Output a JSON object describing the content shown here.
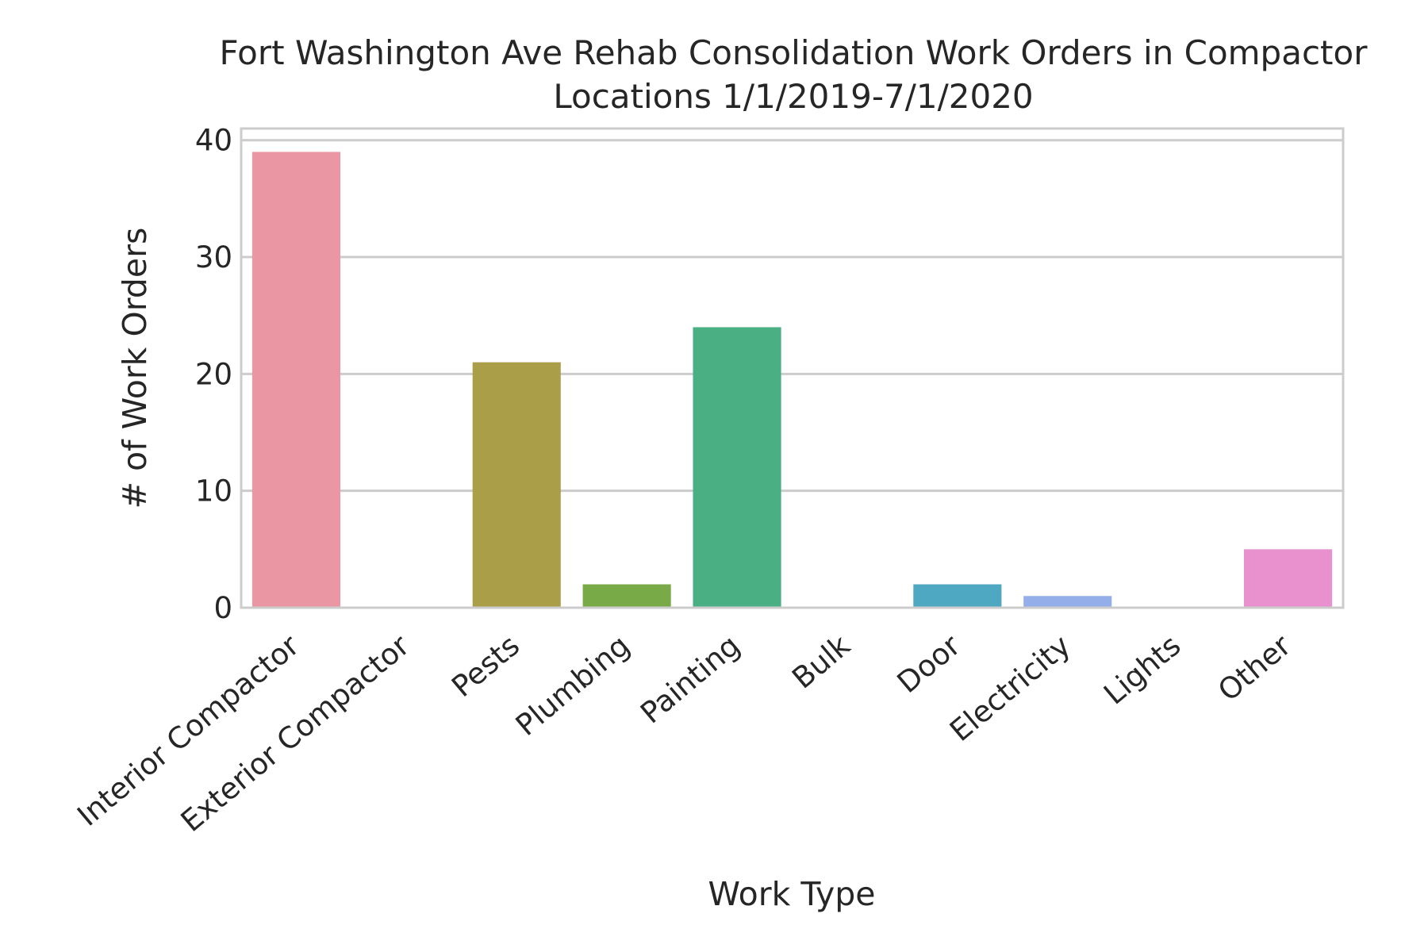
{
  "chart_data": {
    "type": "bar",
    "title_lines": [
      "Fort Washington Ave Rehab Consolidation Work Orders in Compactor",
      "Locations 1/1/2019-7/1/2020"
    ],
    "xlabel": "Work Type",
    "ylabel": "# of Work Orders",
    "categories": [
      "Interior Compactor",
      "Exterior Compactor",
      "Pests",
      "Plumbing",
      "Painting",
      "Bulk",
      "Door",
      "Electricity",
      "Lights",
      "Other"
    ],
    "values": [
      39,
      0,
      21,
      2,
      24,
      0,
      2,
      1,
      0,
      5
    ],
    "colors": [
      "#ea96a3",
      "#d99b66",
      "#aa9e48",
      "#79aa48",
      "#4baf84",
      "#4eaea4",
      "#4fa8c2",
      "#94aeea",
      "#d391ea",
      "#e991ce"
    ],
    "ylim": [
      0,
      41
    ],
    "yticks": [
      0,
      10,
      20,
      30,
      40
    ],
    "grid": true,
    "legend": "none"
  }
}
